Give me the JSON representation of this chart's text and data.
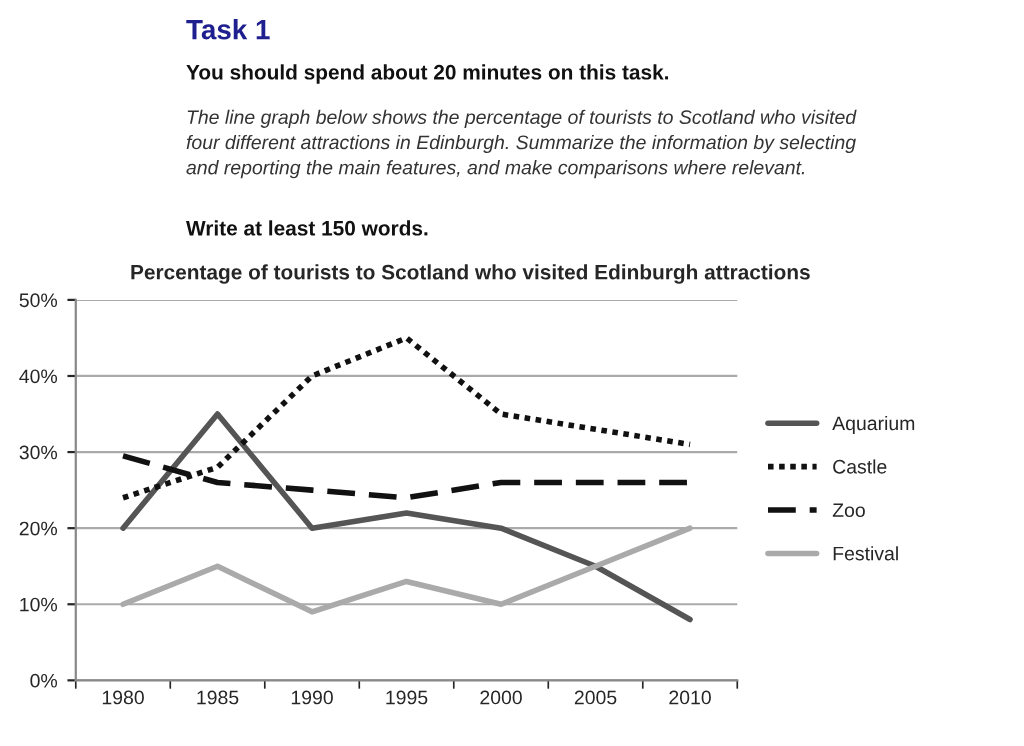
{
  "chart_data": {
    "type": "line",
    "title": "Task 1",
    "annotations": [
      "You should spend about 20 minutes on this task.",
      "The line graph below shows the percentage of tourists to Scotland who visited\nfour different attractions in Edinburgh. Summarize the information by selecting\nand reporting the main features, and make comparisons where relevant.",
      "Write at least 150 words."
    ],
    "subtitle": "Percentage of tourists to Scotland who visited Edinburgh attractions",
    "categories": [
      "1980",
      "1985",
      "1990",
      "1995",
      "2000",
      "2005",
      "2010"
    ],
    "series": [
      {
        "name": "Aquarium",
        "color": "#555555",
        "line_style": "solid",
        "values": [
          20,
          35,
          20,
          22,
          20,
          15,
          8
        ]
      },
      {
        "name": "Castle",
        "color": "#111111",
        "line_style": "dotted",
        "values": [
          24,
          28,
          40,
          45,
          35,
          33,
          31
        ]
      },
      {
        "name": "Zoo",
        "color": "#111111",
        "line_style": "dashed",
        "values": [
          29.5,
          26,
          25,
          24,
          26,
          26,
          26
        ]
      },
      {
        "name": "Festival",
        "color": "#aaaaaa",
        "line_style": "solid",
        "values": [
          10,
          15,
          9,
          13,
          10,
          15,
          20
        ]
      }
    ],
    "ylim": [
      0,
      50
    ],
    "yticks": [
      {
        "value": 0,
        "label": "0%"
      },
      {
        "value": 10,
        "label": "10%"
      },
      {
        "value": 20,
        "label": "20%"
      },
      {
        "value": 30,
        "label": "30%"
      },
      {
        "value": 40,
        "label": "40%"
      },
      {
        "value": 50,
        "label": "50%"
      }
    ],
    "grid": "y",
    "legend": "right",
    "marker": "none"
  }
}
